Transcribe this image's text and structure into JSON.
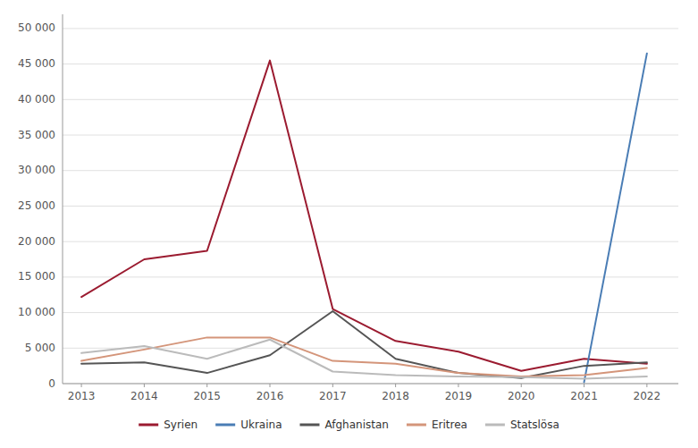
{
  "chart_data": {
    "type": "line",
    "x": [
      2013,
      2014,
      2015,
      2016,
      2017,
      2018,
      2019,
      2020,
      2021,
      2022
    ],
    "xlim": [
      2012.7,
      2022.5
    ],
    "xticks": [
      2013,
      2014,
      2015,
      2016,
      2017,
      2018,
      2019,
      2020,
      2021,
      2022
    ],
    "ylim": [
      0,
      52000
    ],
    "yticks": [
      0,
      {
        "value": 5000,
        "label": "5 000"
      },
      {
        "value": 10000,
        "label": "10 000"
      },
      {
        "value": 15000,
        "label": "15 000"
      },
      {
        "value": 20000,
        "label": "20 000"
      },
      {
        "value": 25000,
        "label": "25 000"
      },
      {
        "value": 30000,
        "label": "30 000"
      },
      {
        "value": 35000,
        "label": "35 000"
      },
      {
        "value": 40000,
        "label": "40 000"
      },
      {
        "value": 45000,
        "label": "45 000"
      },
      {
        "value": 50000,
        "label": "50 000"
      }
    ],
    "grid": true,
    "legend": "bottom",
    "series": [
      {
        "name": "Syrien",
        "color": "#9B1B30",
        "values": [
          12200,
          17500,
          18700,
          45500,
          10500,
          6000,
          4500,
          1800,
          3500,
          2800
        ]
      },
      {
        "name": "Ukraina",
        "color": "#4A7DB5",
        "values": [
          null,
          null,
          null,
          null,
          null,
          null,
          null,
          null,
          200,
          46500
        ]
      },
      {
        "name": "Afghanistan",
        "color": "#555555",
        "values": [
          2800,
          3000,
          1500,
          4000,
          10200,
          3500,
          1500,
          800,
          2500,
          3000
        ]
      },
      {
        "name": "Eritrea",
        "color": "#D4957A",
        "values": [
          3200,
          4800,
          6500,
          6500,
          3200,
          2800,
          1500,
          1000,
          1200,
          2200
        ]
      },
      {
        "name": "Statslösa",
        "color": "#BBBBBB",
        "values": [
          4300,
          5300,
          3500,
          6200,
          1700,
          1200,
          1000,
          900,
          700,
          1000
        ]
      }
    ]
  }
}
